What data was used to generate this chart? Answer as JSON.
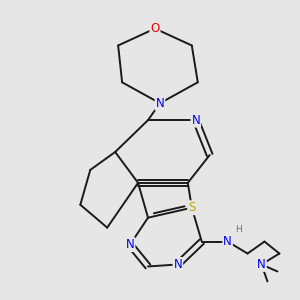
{
  "background_color": "#e6e6e6",
  "bond_color": "#1a1a1a",
  "atom_colors": {
    "N": "#0000ee",
    "O": "#ee0000",
    "S": "#bbaa00",
    "H": "#607080",
    "C": "#1a1a1a"
  },
  "bond_width": 1.4,
  "font_size_atom": 8.5,
  "fig_w": 3.0,
  "fig_h": 3.0,
  "dpi": 100
}
